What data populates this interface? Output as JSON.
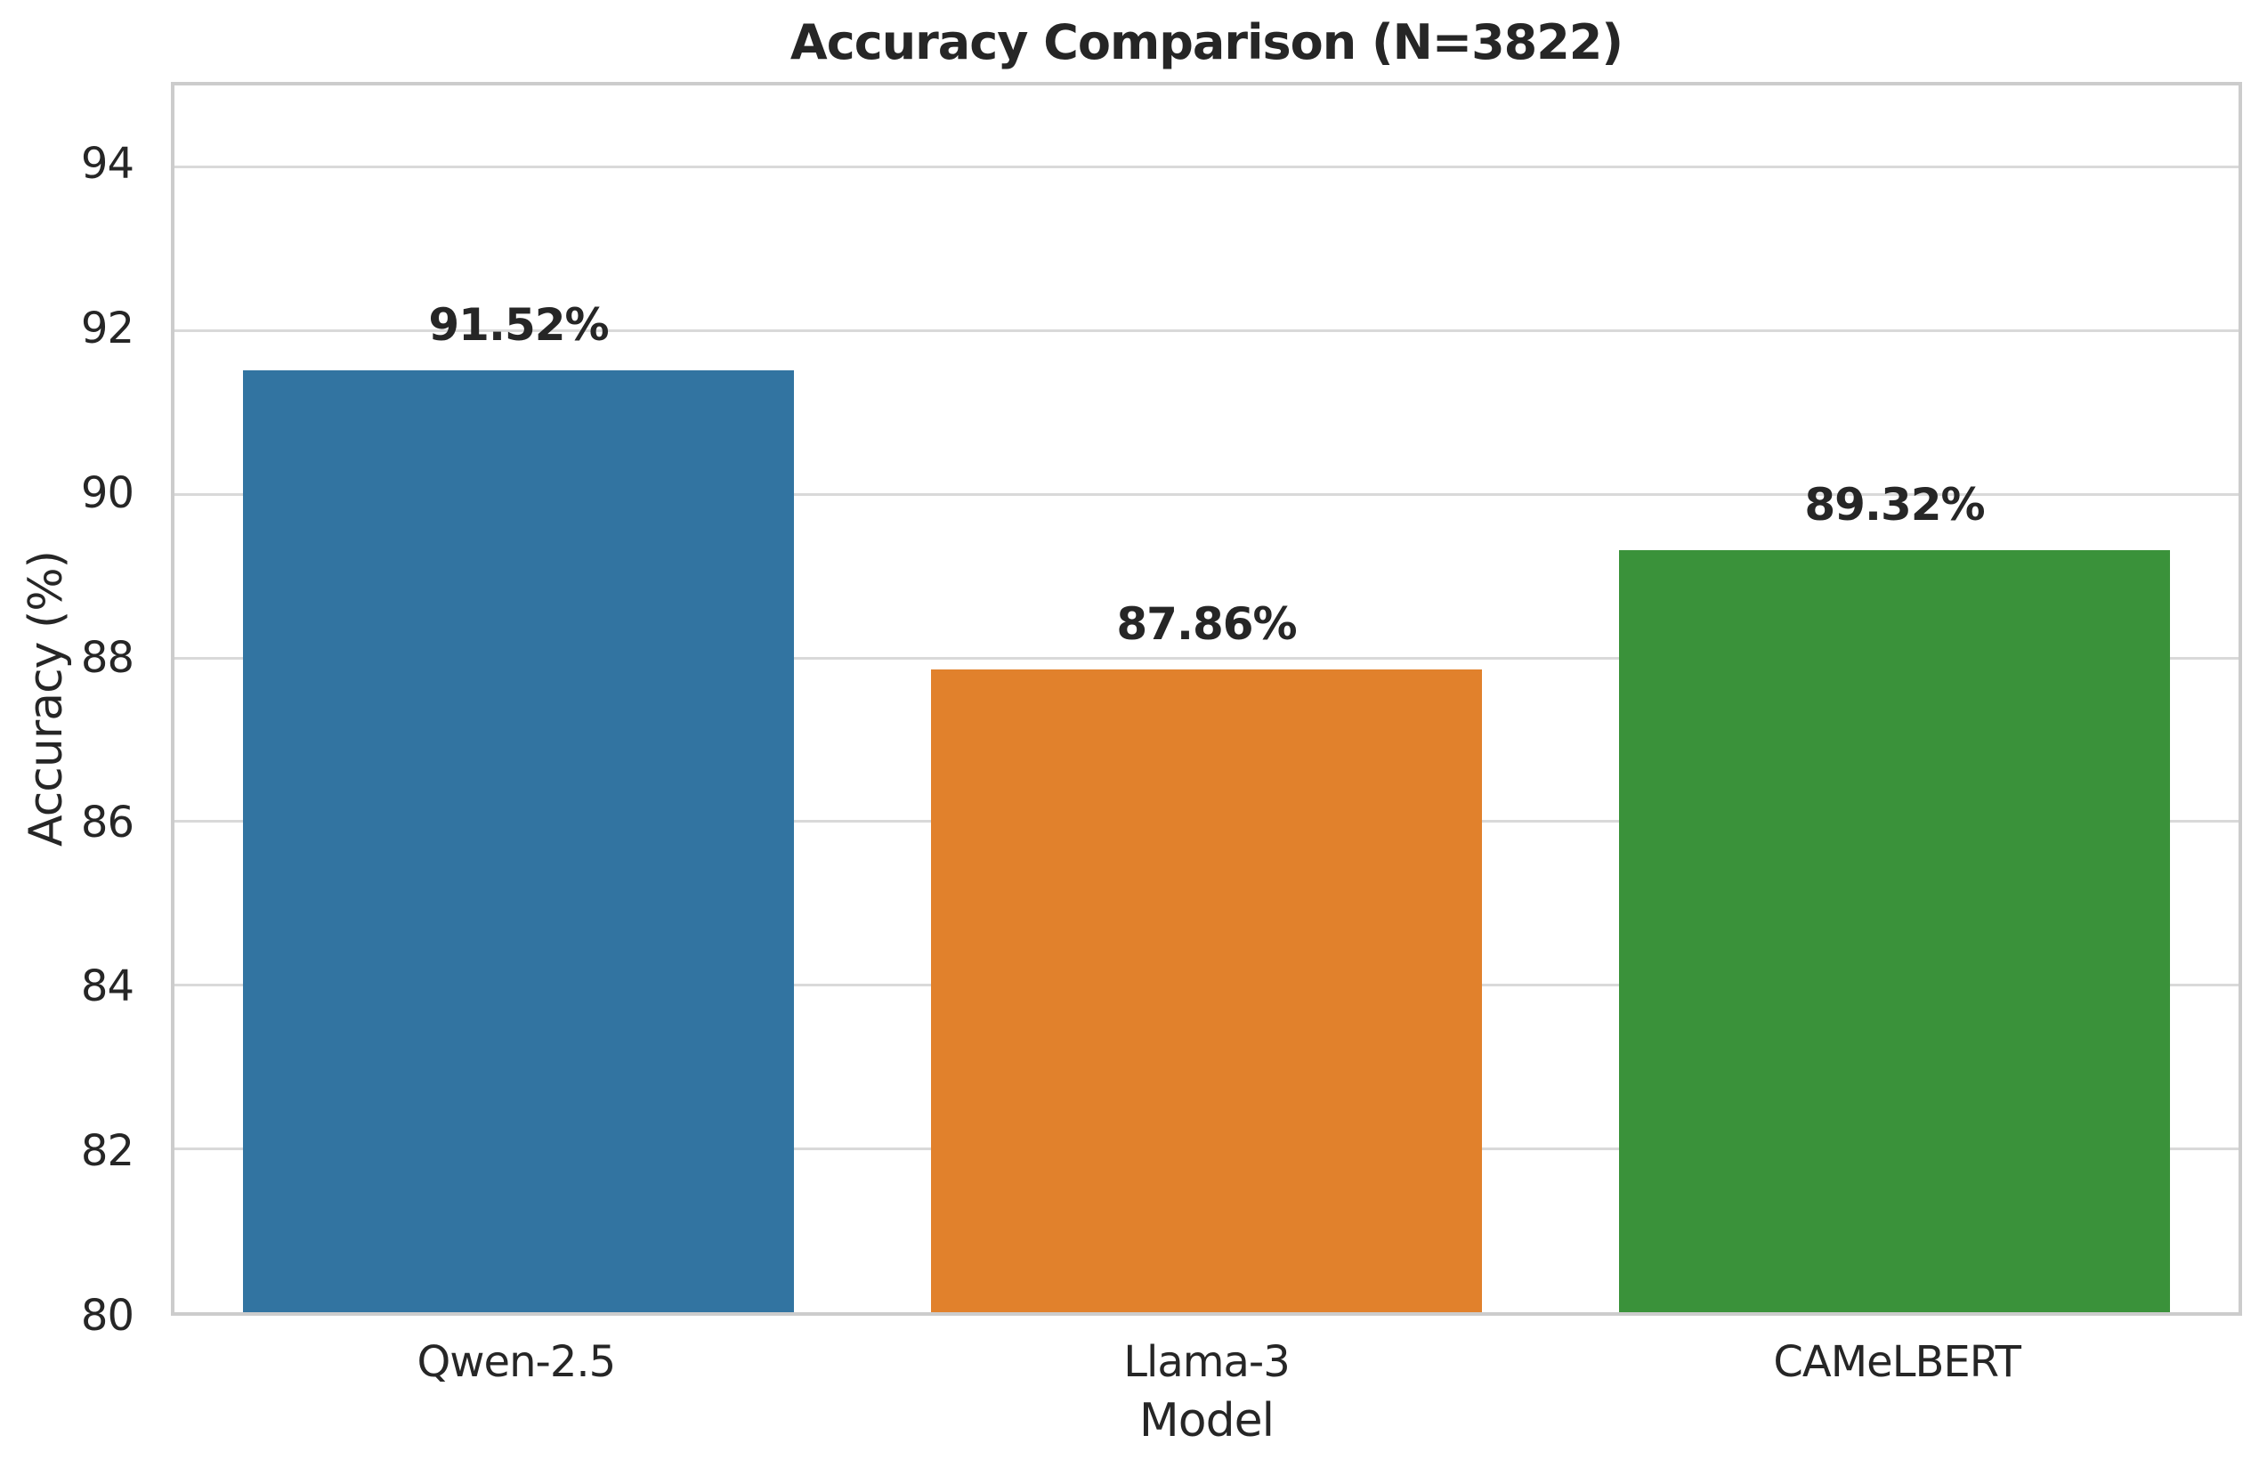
{
  "figure": {
    "title": "Accuracy Comparison (N=3822)",
    "xlabel": "Model",
    "ylabel": "Accuracy (%)"
  },
  "chart_data": {
    "type": "bar",
    "title": "Accuracy Comparison (N=3822)",
    "xlabel": "Model",
    "ylabel": "Accuracy (%)",
    "categories": [
      "Qwen-2.5",
      "Llama-3",
      "CAMeLBERT"
    ],
    "values": [
      91.52,
      87.86,
      89.32
    ],
    "value_labels": [
      "91.52%",
      "87.86%",
      "89.32%"
    ],
    "bar_colors": [
      "#3274a1",
      "#e1812c",
      "#3a923a"
    ],
    "ylim": [
      80,
      95
    ],
    "yticks": [
      80,
      82,
      84,
      86,
      88,
      90,
      92,
      94
    ],
    "bar_width_fraction": 0.8,
    "grid": "horizontal",
    "legend": "none"
  },
  "colors": {
    "background": "#ffffff",
    "grid_line": "#d9d9d9",
    "spine": "#cccccc",
    "text": "#262626"
  }
}
